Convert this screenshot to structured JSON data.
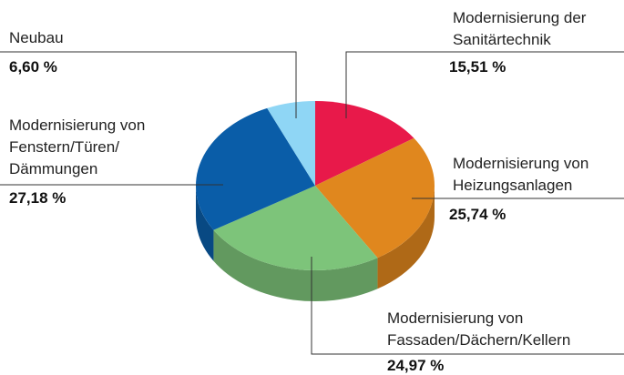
{
  "chart_data": {
    "type": "pie",
    "categories": [
      "Modernisierung der\nSanitärtechnik",
      "Modernisierung von\nHeizungsanlagen",
      "Modernisierung von\nFassaden/Dächern/Kellern",
      "Modernisierung von\nFenstern/Türen/\nDämmungen",
      "Neubau"
    ],
    "values": [
      15.51,
      25.74,
      24.97,
      27.18,
      6.6
    ],
    "value_labels": [
      "15,51 %",
      "25,74 %",
      "24,97 %",
      "27,18 %",
      "6,60 %"
    ],
    "colors": [
      "#e8194a",
      "#e0871e",
      "#7dc47a",
      "#0a5da8",
      "#8fd6f5"
    ]
  }
}
